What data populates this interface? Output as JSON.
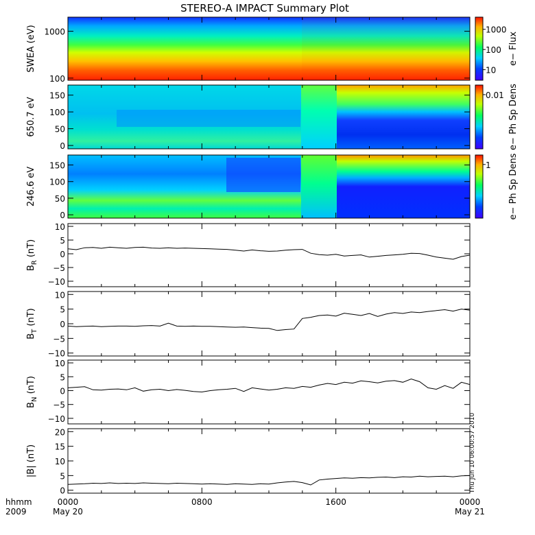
{
  "chart_data": {
    "type": "multi-panel-time-series",
    "title": "STEREO-A IMPACT Summary Plot",
    "x_axis": {
      "range_hours": [
        0,
        24
      ],
      "tick_hours": [
        0,
        8,
        16,
        24
      ],
      "tick_labels_time": [
        "0000",
        "0800",
        "1600",
        "0000"
      ],
      "tick_labels_date": [
        "May 20",
        "",
        "",
        "May 21"
      ],
      "corner_label_top": "hhmm",
      "corner_label_bottom": "2009"
    },
    "timestamp": "Thu Jun 10 06:00:57 2010",
    "panels": [
      {
        "id": "swea",
        "kind": "spectrogram",
        "ylabel": "SWEA (eV)",
        "yscale": "log",
        "ylim": [
          90,
          2000
        ],
        "yticks": [
          100,
          1000
        ],
        "ytick_labels": [
          "100",
          "1000"
        ],
        "colorbar": {
          "label": "e− Flux",
          "scale": "log",
          "range": [
            3,
            4000
          ],
          "ticks": [
            10,
            100,
            1000
          ],
          "tick_labels": [
            "10",
            "100",
            "1000"
          ]
        }
      },
      {
        "id": "pad650",
        "kind": "spectrogram",
        "ylabel": "650.7 eV",
        "ylim": [
          -10,
          180
        ],
        "yticks": [
          0,
          50,
          100,
          150
        ],
        "ytick_labels": [
          "0",
          "50",
          "100",
          "150"
        ],
        "colorbar": {
          "label": "e− Ph Sp Dens",
          "ticks": [
            0.85
          ],
          "tick_labels": [
            "0.01"
          ]
        }
      },
      {
        "id": "pad246",
        "kind": "spectrogram",
        "ylabel": "246.6 eV",
        "ylim": [
          -10,
          180
        ],
        "yticks": [
          0,
          50,
          100,
          150
        ],
        "ytick_labels": [
          "0",
          "50",
          "100",
          "150"
        ],
        "colorbar": {
          "label": "e− Ph Sp Dens",
          "ticks": [
            0.85
          ],
          "tick_labels": [
            "1"
          ]
        }
      },
      {
        "id": "br",
        "kind": "line",
        "ylabel_main": "B",
        "ylabel_sub": "R",
        "ylabel_unit": " (nT)",
        "ylim": [
          -12,
          11
        ],
        "yticks": [
          -10,
          -5,
          0,
          5,
          10
        ],
        "ytick_labels": [
          "−10",
          "−5",
          "0",
          "5",
          "10"
        ],
        "x": [
          0,
          0.5,
          1,
          1.5,
          2,
          2.5,
          3,
          3.5,
          4,
          4.5,
          5,
          5.5,
          6,
          6.5,
          7,
          7.5,
          8,
          8.5,
          9,
          9.5,
          10,
          10.5,
          11,
          11.5,
          12,
          12.5,
          13,
          13.5,
          14,
          14.5,
          15,
          15.5,
          16,
          16.5,
          17,
          17.5,
          18,
          18.5,
          19,
          19.5,
          20,
          20.5,
          21,
          21.5,
          22,
          22.5,
          23,
          23.5,
          24
        ],
        "y": [
          1.8,
          1.5,
          2.2,
          2.3,
          2.0,
          2.4,
          2.2,
          2.0,
          2.3,
          2.4,
          2.1,
          2.0,
          2.2,
          2.0,
          2.1,
          2.0,
          1.9,
          1.8,
          1.7,
          1.6,
          1.3,
          1.0,
          1.4,
          1.1,
          0.9,
          1.0,
          1.3,
          1.5,
          1.6,
          0.2,
          -0.3,
          -0.5,
          -0.2,
          -0.8,
          -0.6,
          -0.4,
          -1.2,
          -0.9,
          -0.6,
          -0.4,
          -0.2,
          0.2,
          0.1,
          -0.5,
          -1.2,
          -1.6,
          -2.0,
          -1.0,
          -0.5
        ]
      },
      {
        "id": "bt",
        "kind": "line",
        "ylabel_main": "B",
        "ylabel_sub": "T",
        "ylabel_unit": " (nT)",
        "ylim": [
          -11,
          11
        ],
        "yticks": [
          -10,
          -5,
          0,
          5,
          10
        ],
        "ytick_labels": [
          "−10",
          "−5",
          "0",
          "5",
          "10"
        ],
        "x": [
          0,
          0.5,
          1,
          1.5,
          2,
          2.5,
          3,
          3.5,
          4,
          4.5,
          5,
          5.5,
          6,
          6.5,
          7,
          7.5,
          8,
          8.5,
          9,
          9.5,
          10,
          10.5,
          11,
          11.5,
          12,
          12.5,
          13,
          13.5,
          14,
          14.5,
          15,
          15.5,
          16,
          16.5,
          17,
          17.5,
          18,
          18.5,
          19,
          19.5,
          20,
          20.5,
          21,
          21.5,
          22,
          22.5,
          23,
          23.5,
          24
        ],
        "y": [
          -0.8,
          -1.0,
          -0.9,
          -0.8,
          -1.0,
          -0.9,
          -0.8,
          -0.8,
          -0.9,
          -0.7,
          -0.6,
          -0.8,
          0.2,
          -0.8,
          -0.9,
          -0.8,
          -0.9,
          -0.9,
          -1.0,
          -1.1,
          -1.2,
          -1.1,
          -1.3,
          -1.5,
          -1.6,
          -2.3,
          -2.0,
          -1.8,
          1.8,
          2.2,
          2.8,
          3.0,
          2.6,
          3.6,
          3.2,
          2.8,
          3.5,
          2.5,
          3.3,
          3.8,
          3.5,
          4.0,
          3.8,
          4.2,
          4.5,
          4.8,
          4.3,
          5.0,
          4.6
        ]
      },
      {
        "id": "bn",
        "kind": "line",
        "ylabel_main": "B",
        "ylabel_sub": "N",
        "ylabel_unit": " (nT)",
        "ylim": [
          -12,
          11
        ],
        "yticks": [
          -10,
          -5,
          0,
          5,
          10
        ],
        "ytick_labels": [
          "−10",
          "−5",
          "0",
          "5",
          "10"
        ],
        "x": [
          0,
          0.5,
          1,
          1.5,
          2,
          2.5,
          3,
          3.5,
          4,
          4.5,
          5,
          5.5,
          6,
          6.5,
          7,
          7.5,
          8,
          8.5,
          9,
          9.5,
          10,
          10.5,
          11,
          11.5,
          12,
          12.5,
          13,
          13.5,
          14,
          14.5,
          15,
          15.5,
          16,
          16.5,
          17,
          17.5,
          18,
          18.5,
          19,
          19.5,
          20,
          20.5,
          21,
          21.5,
          22,
          22.5,
          23,
          23.5,
          24
        ],
        "y": [
          1.0,
          1.2,
          1.4,
          0.3,
          0.2,
          0.5,
          0.6,
          0.3,
          1.0,
          -0.2,
          0.3,
          0.5,
          0.0,
          0.4,
          0.1,
          -0.3,
          -0.5,
          0.0,
          0.3,
          0.5,
          0.8,
          -0.3,
          1.0,
          0.6,
          0.2,
          0.5,
          1.0,
          0.8,
          1.5,
          1.2,
          2.0,
          2.6,
          2.2,
          3.0,
          2.7,
          3.5,
          3.2,
          2.8,
          3.4,
          3.6,
          3.0,
          4.2,
          3.2,
          1.0,
          0.5,
          1.8,
          0.8,
          3.0,
          2.2
        ]
      },
      {
        "id": "bmag",
        "kind": "line",
        "ylabel_main": "|B|",
        "ylabel_sub": "",
        "ylabel_unit": " (nT)",
        "ylim": [
          -1,
          21
        ],
        "yticks": [
          0,
          5,
          10,
          15,
          20
        ],
        "ytick_labels": [
          "0",
          "5",
          "10",
          "15",
          "20"
        ],
        "x": [
          0,
          0.5,
          1,
          1.5,
          2,
          2.5,
          3,
          3.5,
          4,
          4.5,
          5,
          5.5,
          6,
          6.5,
          7,
          7.5,
          8,
          8.5,
          9,
          9.5,
          10,
          10.5,
          11,
          11.5,
          12,
          12.5,
          13,
          13.5,
          14,
          14.5,
          15,
          15.5,
          16,
          16.5,
          17,
          17.5,
          18,
          18.5,
          19,
          19.5,
          20,
          20.5,
          21,
          21.5,
          22,
          22.5,
          23,
          23.5,
          24
        ],
        "y": [
          2.0,
          2.1,
          2.2,
          2.4,
          2.3,
          2.5,
          2.3,
          2.4,
          2.3,
          2.5,
          2.4,
          2.3,
          2.2,
          2.4,
          2.3,
          2.2,
          2.1,
          2.2,
          2.1,
          2.0,
          2.2,
          2.1,
          2.0,
          2.2,
          2.1,
          2.5,
          2.8,
          3.0,
          2.6,
          1.8,
          3.5,
          3.8,
          4.0,
          4.2,
          4.1,
          4.3,
          4.2,
          4.4,
          4.5,
          4.3,
          4.6,
          4.5,
          4.8,
          4.6,
          4.7,
          4.8,
          4.6,
          4.9,
          5.0
        ]
      }
    ]
  }
}
